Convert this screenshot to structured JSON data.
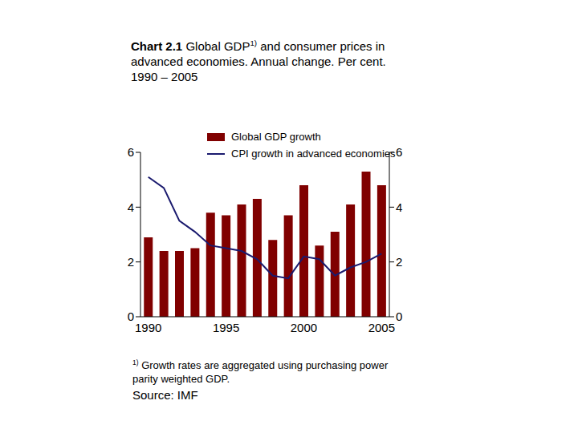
{
  "chart_data": {
    "type": "bar",
    "title": "Chart 2.1 Global GDP1) and consumer prices in advanced economies. Annual change. Per cent.",
    "subtitle": "1990 – 2005",
    "footnote": "1) Growth rates are aggregated using purchasing power parity weighted GDP.",
    "source": "Source: IMF",
    "categories": [
      "1990",
      null,
      null,
      null,
      null,
      "1995",
      null,
      null,
      null,
      null,
      "2000",
      null,
      null,
      null,
      null,
      "2005"
    ],
    "series": [
      {
        "name": "Global GDP growth",
        "type": "bar",
        "color": "#800000",
        "values": [
          2.9,
          2.4,
          2.4,
          2.5,
          3.8,
          3.7,
          4.1,
          4.3,
          2.8,
          3.7,
          4.8,
          2.6,
          3.1,
          4.1,
          5.3,
          4.8
        ]
      },
      {
        "name": "CPI growth in advanced economies",
        "type": "line",
        "color": "#1a1a6e",
        "axis": "y2",
        "values": [
          5.1,
          4.7,
          3.5,
          3.1,
          2.6,
          2.5,
          2.4,
          2.1,
          1.5,
          1.4,
          2.2,
          2.1,
          1.5,
          1.8,
          2.0,
          2.3
        ]
      }
    ],
    "ylim": [
      0,
      6
    ],
    "yticks": [
      0,
      2,
      4,
      6
    ],
    "y2lim": [
      0,
      6
    ],
    "y2ticks": [
      0,
      2,
      4,
      6
    ],
    "grid": false
  }
}
